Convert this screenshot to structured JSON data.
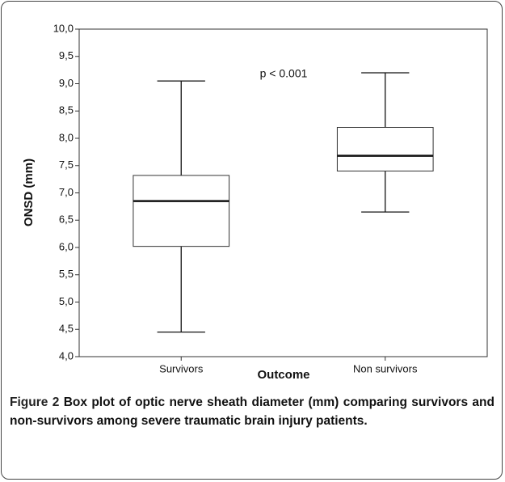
{
  "chart_data": {
    "type": "box",
    "annotation": "p < 0.001",
    "x_label": "Outcome",
    "y_label": "ONSD (mm)",
    "categories": [
      "Survivors",
      "Non survivors"
    ],
    "boxes": [
      {
        "min": 4.45,
        "q1": 6.02,
        "median": 6.85,
        "q3": 7.32,
        "max": 9.05
      },
      {
        "min": 6.65,
        "q1": 7.4,
        "median": 7.68,
        "q3": 8.2,
        "max": 9.2
      }
    ],
    "color": "#ffffff",
    "ylim": [
      4,
      10
    ],
    "yticks": [
      {
        "value": 4,
        "label": "4,0"
      },
      {
        "value": 4.5,
        "label": "4,5"
      },
      {
        "value": 5,
        "label": "5,0"
      },
      {
        "value": 5.5,
        "label": "5,5"
      },
      {
        "value": 6,
        "label": "6,0"
      },
      {
        "value": 6.5,
        "label": "6,5"
      },
      {
        "value": 7,
        "label": "7,0"
      },
      {
        "value": 7.5,
        "label": "7,5"
      },
      {
        "value": 8,
        "label": "8,0"
      },
      {
        "value": 8.5,
        "label": "8,5"
      },
      {
        "value": 9,
        "label": "9,0"
      },
      {
        "value": 9.5,
        "label": "9,5"
      },
      {
        "value": 10,
        "label": "10,0"
      }
    ],
    "grid": false
  },
  "caption": {
    "label": "Figure 2",
    "text": "Box plot of optic nerve sheath diameter (mm) comparing survivors and non-survivors among severe traumatic brain injury patients."
  }
}
